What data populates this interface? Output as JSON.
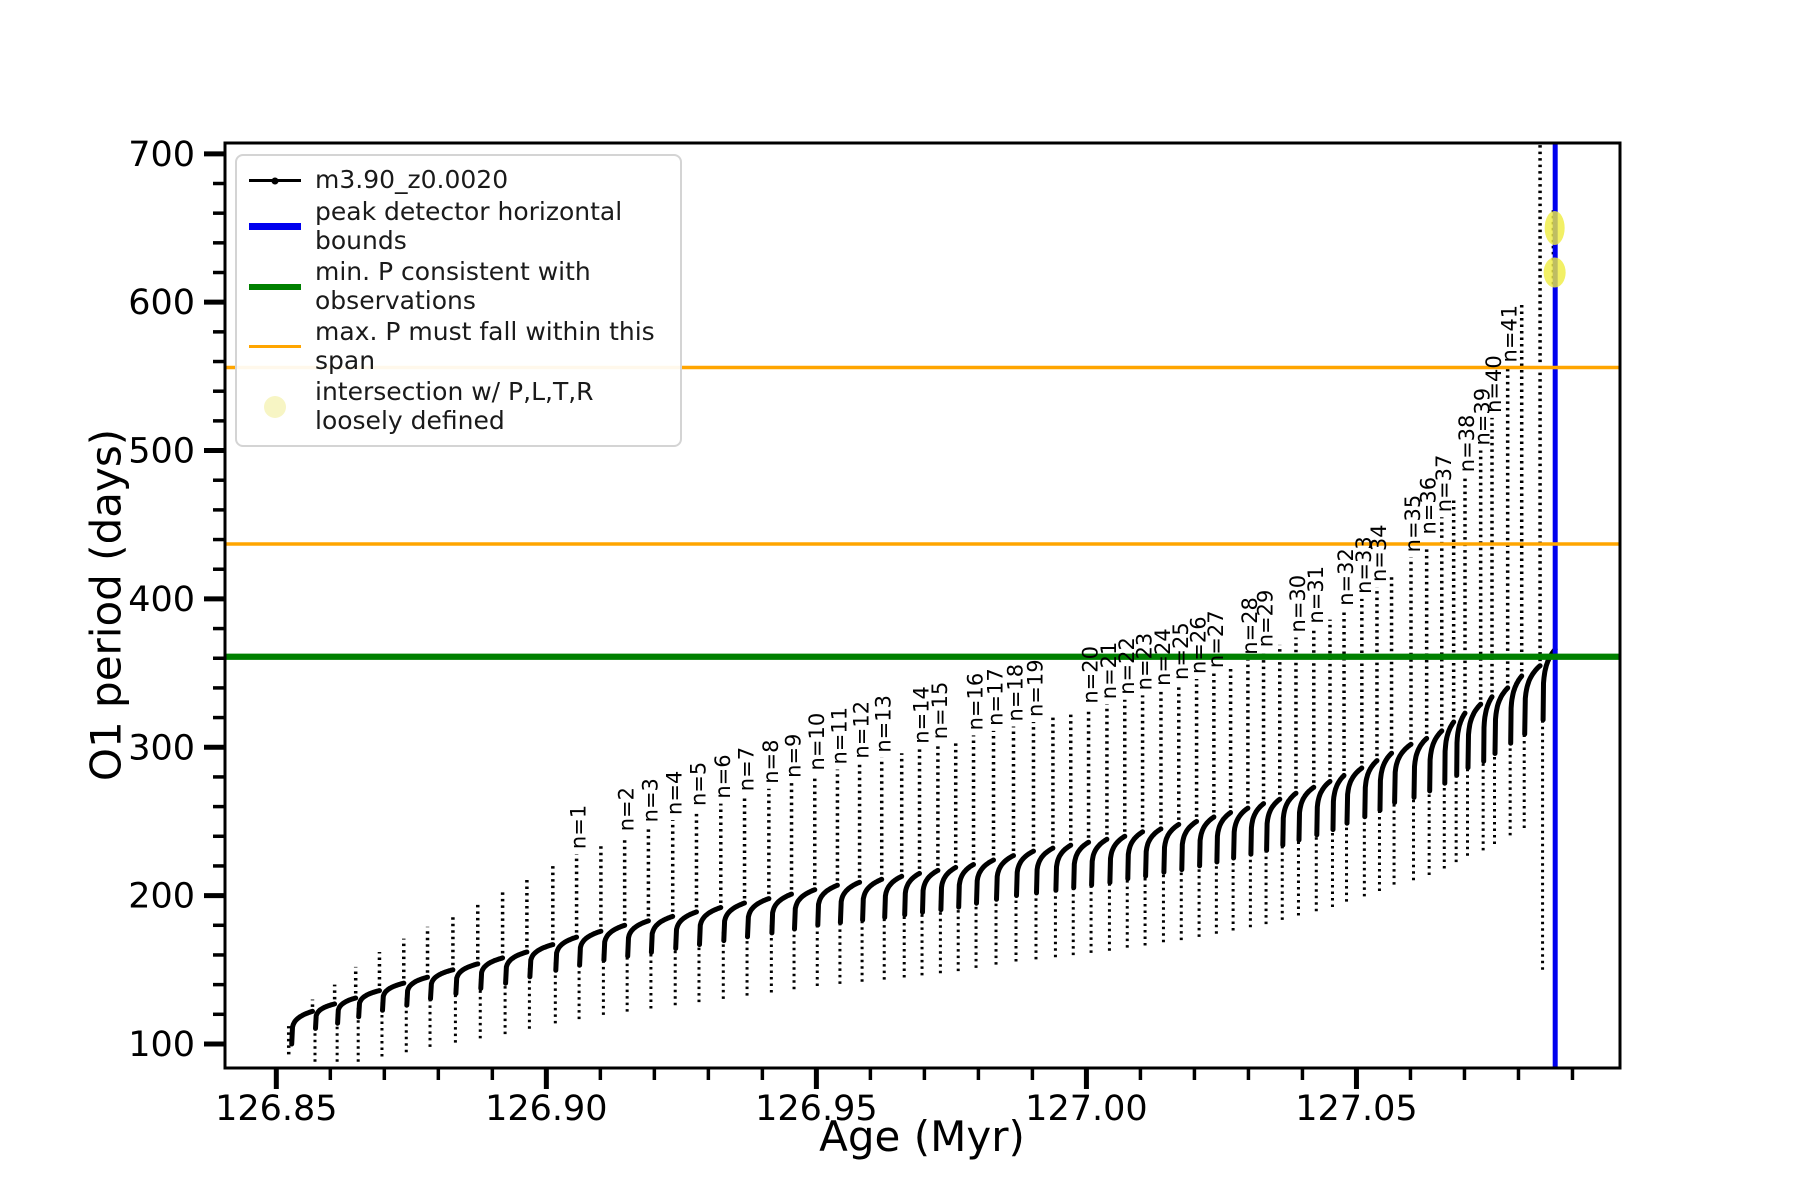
{
  "axes": {
    "xlabel": "Age (Myr)",
    "ylabel": "O1 period (days)",
    "xlim": [
      126.8405,
      127.0988
    ],
    "ylim": [
      83.8,
      707.3
    ],
    "x_major_ticks": [
      126.85,
      126.9,
      126.95,
      127.0,
      127.05
    ],
    "x_major_labels": [
      "126.85",
      "126.90",
      "126.95",
      "127.00",
      "127.05"
    ],
    "x_minor_step": 0.01,
    "y_major_ticks": [
      100,
      200,
      300,
      400,
      500,
      600,
      700
    ],
    "y_minor_step": 20
  },
  "colors": {
    "series": "#000000",
    "peak_bounds": "#0000ee",
    "min_p": "#008000",
    "max_p": "#ffa500",
    "intersection_legend": "#f7f5c4",
    "intersection_plot": "#efec3f"
  },
  "legend": {
    "entries": [
      {
        "label": "m3.90_z0.0020",
        "kind": "line-dot",
        "color_key": "series"
      },
      {
        "label": "peak detector horizontal bounds",
        "kind": "line",
        "color_key": "peak_bounds"
      },
      {
        "label": "min. P consistent with observations",
        "kind": "line",
        "color_key": "min_p"
      },
      {
        "label": "max. P must fall within this span",
        "kind": "line",
        "color_key": "max_p"
      },
      {
        "label": "intersection w/ P,L,T,R\nloosely defined",
        "kind": "marker",
        "color_key": "intersection_legend"
      }
    ]
  },
  "chart_data": {
    "type": "line",
    "title": "",
    "xlabel": "Age (Myr)",
    "ylabel": "O1 period (days)",
    "xlim": [
      126.8405,
      127.0988
    ],
    "ylim": [
      83.8,
      707.3
    ],
    "grid": false,
    "legend_position": "upper left",
    "series_label": "m3.90_z0.0020",
    "hlines": [
      {
        "y": 556,
        "color_key": "max_p",
        "label": "max. P must fall within this span (upper)"
      },
      {
        "y": 437,
        "color_key": "max_p",
        "label": "max. P must fall within this span (lower)"
      },
      {
        "y": 361,
        "color_key": "min_p",
        "label": "min. P consistent with observations"
      }
    ],
    "vlines": [
      {
        "x": 127.0868,
        "color_key": "peak_bounds",
        "label": "peak detector horizontal bounds"
      }
    ],
    "intersection_marker": {
      "age": 127.0867,
      "period": 638,
      "period_span": [
        612,
        662
      ]
    },
    "data_start_age": 126.8523,
    "data_start_period": 100,
    "final_collapse_age": 127.084,
    "pulse_cycles": [
      {
        "age": 126.8567,
        "peak": 130,
        "fin": 122
      },
      {
        "age": 126.8608,
        "peak": 140,
        "fin": 127
      },
      {
        "age": 126.8647,
        "peak": 152,
        "fin": 131
      },
      {
        "age": 126.8691,
        "peak": 162,
        "fin": 136
      },
      {
        "age": 126.8736,
        "peak": 171,
        "fin": 141
      },
      {
        "age": 126.878,
        "peak": 179,
        "fin": 145
      },
      {
        "age": 126.8827,
        "peak": 188,
        "fin": 150
      },
      {
        "age": 126.8873,
        "peak": 196,
        "fin": 154
      },
      {
        "age": 126.8919,
        "peak": 204,
        "fin": 158
      },
      {
        "age": 126.8964,
        "peak": 211,
        "fin": 162
      },
      {
        "age": 126.9012,
        "peak": 220,
        "fin": 167
      },
      {
        "age": 126.9056,
        "peak": 228,
        "fin": 172,
        "label": "n=1"
      },
      {
        "age": 126.9101,
        "peak": 234,
        "fin": 176
      },
      {
        "age": 126.9145,
        "peak": 240,
        "fin": 180,
        "label": "n=2"
      },
      {
        "age": 126.9189,
        "peak": 246,
        "fin": 183,
        "label": "n=3"
      },
      {
        "age": 126.9234,
        "peak": 251,
        "fin": 186,
        "label": "n=4"
      },
      {
        "age": 126.9278,
        "peak": 257,
        "fin": 189,
        "label": "n=5"
      },
      {
        "age": 126.9323,
        "peak": 262,
        "fin": 192,
        "label": "n=6"
      },
      {
        "age": 126.9367,
        "peak": 267,
        "fin": 195,
        "label": "n=7"
      },
      {
        "age": 126.9412,
        "peak": 272,
        "fin": 198,
        "label": "n=8"
      },
      {
        "age": 126.9454,
        "peak": 276,
        "fin": 201,
        "label": "n=9"
      },
      {
        "age": 126.9497,
        "peak": 281,
        "fin": 204,
        "label": "n=10"
      },
      {
        "age": 126.9539,
        "peak": 285,
        "fin": 207,
        "label": "n=11"
      },
      {
        "age": 126.958,
        "peak": 289,
        "fin": 209,
        "label": "n=12"
      },
      {
        "age": 126.9621,
        "peak": 293,
        "fin": 211,
        "label": "n=13"
      },
      {
        "age": 126.9658,
        "peak": 296,
        "fin": 213
      },
      {
        "age": 126.9691,
        "peak": 299,
        "fin": 215,
        "label": "n=14"
      },
      {
        "age": 126.9725,
        "peak": 302,
        "fin": 217,
        "label": "n=15"
      },
      {
        "age": 126.9758,
        "peak": 305,
        "fin": 219
      },
      {
        "age": 126.9791,
        "peak": 308,
        "fin": 221,
        "label": "n=16"
      },
      {
        "age": 126.9828,
        "peak": 311,
        "fin": 224,
        "label": "n=17"
      },
      {
        "age": 126.9865,
        "peak": 314,
        "fin": 227,
        "label": "n=18"
      },
      {
        "age": 126.9902,
        "peak": 317,
        "fin": 230,
        "label": "n=19"
      },
      {
        "age": 126.9938,
        "peak": 320,
        "fin": 232
      },
      {
        "age": 126.9971,
        "peak": 323,
        "fin": 234
      },
      {
        "age": 127.0004,
        "peak": 326,
        "fin": 236,
        "label": "n=20"
      },
      {
        "age": 127.0038,
        "peak": 329,
        "fin": 238,
        "label": "n=21"
      },
      {
        "age": 127.0071,
        "peak": 332,
        "fin": 240,
        "label": "n=22"
      },
      {
        "age": 127.0104,
        "peak": 335,
        "fin": 243,
        "label": "n=23"
      },
      {
        "age": 127.0138,
        "peak": 338,
        "fin": 245,
        "label": "n=24"
      },
      {
        "age": 127.0171,
        "peak": 342,
        "fin": 248,
        "label": "n=25"
      },
      {
        "age": 127.0204,
        "peak": 346,
        "fin": 250,
        "label": "n=26"
      },
      {
        "age": 127.0236,
        "peak": 350,
        "fin": 253,
        "label": "n=27"
      },
      {
        "age": 127.0267,
        "peak": 354,
        "fin": 256
      },
      {
        "age": 127.0299,
        "peak": 359,
        "fin": 259,
        "label": "n=28"
      },
      {
        "age": 127.0328,
        "peak": 364,
        "fin": 262,
        "label": "n=29"
      },
      {
        "age": 127.0358,
        "peak": 369,
        "fin": 265
      },
      {
        "age": 127.0388,
        "peak": 374,
        "fin": 269,
        "label": "n=30"
      },
      {
        "age": 127.0421,
        "peak": 380,
        "fin": 273,
        "label": "n=31"
      },
      {
        "age": 127.0451,
        "peak": 386,
        "fin": 277
      },
      {
        "age": 127.0477,
        "peak": 392,
        "fin": 281,
        "label": "n=32"
      },
      {
        "age": 127.051,
        "peak": 400,
        "fin": 286,
        "label": "n=33"
      },
      {
        "age": 127.0538,
        "peak": 408,
        "fin": 291,
        "label": "n=34"
      },
      {
        "age": 127.0565,
        "peak": 417,
        "fin": 296
      },
      {
        "age": 127.0601,
        "peak": 428,
        "fin": 302,
        "label": "n=35"
      },
      {
        "age": 127.063,
        "peak": 440,
        "fin": 306,
        "label": "n=36"
      },
      {
        "age": 127.0658,
        "peak": 455,
        "fin": 311,
        "label": "n=37"
      },
      {
        "age": 127.068,
        "peak": 468,
        "fin": 317
      },
      {
        "age": 127.0701,
        "peak": 482,
        "fin": 323,
        "label": "n=38"
      },
      {
        "age": 127.073,
        "peak": 500,
        "fin": 329,
        "label": "n=39"
      },
      {
        "age": 127.0751,
        "peak": 522,
        "fin": 334,
        "label": "n=40"
      },
      {
        "age": 127.078,
        "peak": 556,
        "fin": 340,
        "label": "n=41"
      },
      {
        "age": 127.0806,
        "peak": 600,
        "fin": 348
      },
      {
        "age": 127.084,
        "peak": 710,
        "fin": 355,
        "deep_tail": true
      },
      {
        "age": 127.0868,
        "peak": 388,
        "fin": 366,
        "terminal": true
      }
    ]
  }
}
